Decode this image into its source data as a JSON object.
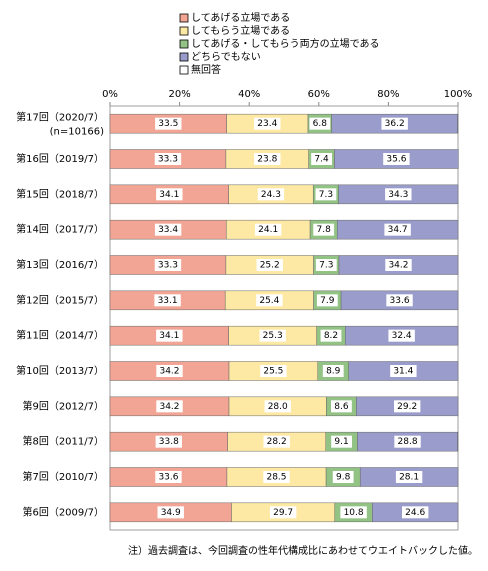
{
  "chart_data": {
    "type": "stacked_bar_horizontal",
    "categories": [
      "第17回（2020/7）",
      "第16回（2019/7）",
      "第15回（2018/7）",
      "第14回（2017/7）",
      "第13回（2016/7）",
      "第12回（2015/7）",
      "第11回（2014/7）",
      "第10回（2013/7）",
      "第9回（2012/7）",
      "第8回（2011/7）",
      "第7回（2010/7）",
      "第6回（2009/7）"
    ],
    "sample_size": "(n=10166)",
    "series": [
      {
        "name": "してあげる立場である",
        "color": "#f2a594",
        "values": [
          33.5,
          33.3,
          34.1,
          33.4,
          33.3,
          33.1,
          34.1,
          34.2,
          34.2,
          33.8,
          33.6,
          34.9
        ],
        "value_labels": [
          "33.5",
          "33.3",
          "34.1",
          "33.4",
          "33.3",
          "33.1",
          "34.1",
          "34.2",
          "34.2",
          "33.8",
          "33.6",
          "34.9"
        ]
      },
      {
        "name": "してもらう立場である",
        "color": "#fde9a3",
        "values": [
          23.4,
          23.8,
          24.3,
          24.1,
          25.2,
          25.4,
          25.3,
          25.5,
          28.0,
          28.2,
          28.5,
          29.7
        ],
        "value_labels": [
          "23.4",
          "23.8",
          "24.3",
          "24.1",
          "25.2",
          "25.4",
          "25.3",
          "25.5",
          "28.0",
          "28.2",
          "28.5",
          "29.7"
        ]
      },
      {
        "name": "してあげる・してもらう両方の立場である",
        "color": "#92c384",
        "values": [
          6.8,
          7.4,
          7.3,
          7.8,
          7.3,
          7.9,
          8.2,
          8.9,
          8.6,
          9.1,
          9.8,
          10.8
        ],
        "value_labels": [
          "6.8",
          "7.4",
          "7.3",
          "7.8",
          "7.3",
          "7.9",
          "8.2",
          "8.9",
          "8.6",
          "9.1",
          "9.8",
          "10.8"
        ]
      },
      {
        "name": "どちらでもない",
        "color": "#9a9ccb",
        "values": [
          36.2,
          35.6,
          34.3,
          34.7,
          34.2,
          33.6,
          32.4,
          31.4,
          29.2,
          28.8,
          28.1,
          24.6
        ],
        "value_labels": [
          "36.2",
          "35.6",
          "34.3",
          "34.7",
          "34.2",
          "33.6",
          "32.4",
          "31.4",
          "29.2",
          "28.8",
          "28.1",
          "24.6"
        ]
      },
      {
        "name": "無回答",
        "color": "#ffffff",
        "values": [
          0.1,
          0,
          0,
          0,
          0,
          0,
          0,
          0,
          0,
          0.1,
          0,
          0
        ]
      }
    ],
    "xlim": [
      0,
      100
    ],
    "xticks": [
      {
        "value": 0,
        "label": "0%"
      },
      {
        "value": 20,
        "label": "20%"
      },
      {
        "value": 40,
        "label": "40%"
      },
      {
        "value": 60,
        "label": "60%"
      },
      {
        "value": 80,
        "label": "80%"
      },
      {
        "value": 100,
        "label": "100%"
      }
    ],
    "note": "注）過去調査は、今回調査の性年代構成比にあわせてウエイトバックした値。"
  }
}
